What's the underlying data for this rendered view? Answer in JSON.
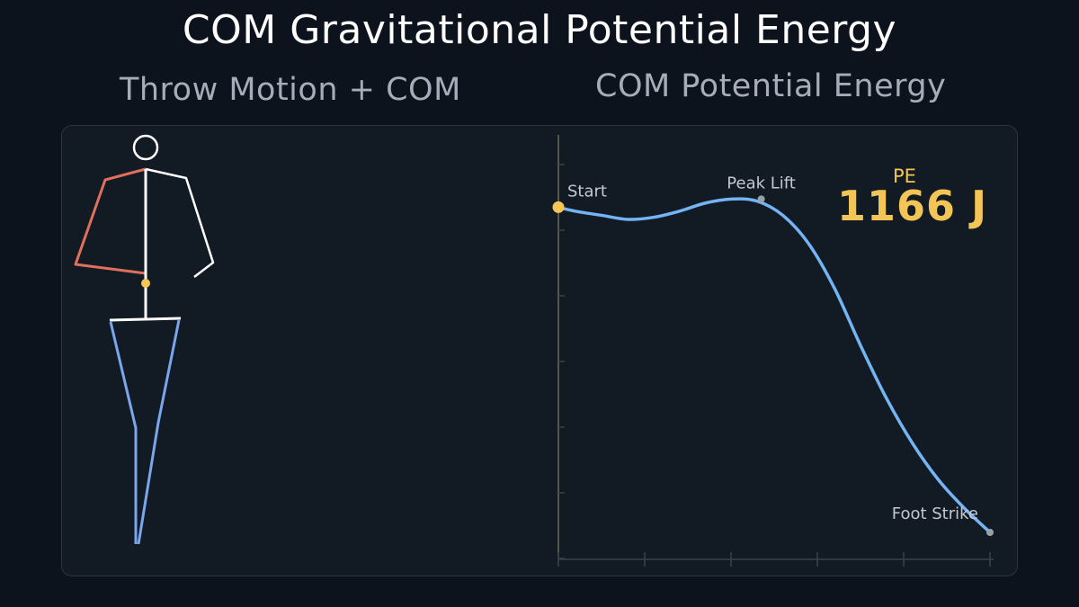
{
  "title": "COM Gravitational Potential Energy",
  "left_panel": {
    "subtitle": "Throw Motion + COM"
  },
  "readout": {
    "label": "PE",
    "value": "1166 J"
  },
  "colors": {
    "background": "#0d131c",
    "panel": "#121a24",
    "curve": "#74b4f4",
    "com": "#f5c556",
    "right_arm": "#e0705c",
    "legs": "#7aa6ee",
    "torso": "#ffffff",
    "axis": "#6f6a52"
  },
  "chart_data": {
    "type": "line",
    "title": "COM Potential Energy",
    "xlabel": "",
    "ylabel": "",
    "grid": false,
    "x_ticks": 6,
    "y_ticks": 7,
    "series": [
      {
        "values": [
          [
            0.0,
            0.8
          ],
          [
            0.04,
            0.79
          ],
          [
            0.1,
            0.78
          ],
          [
            0.16,
            0.77
          ],
          [
            0.22,
            0.775
          ],
          [
            0.28,
            0.79
          ],
          [
            0.34,
            0.81
          ],
          [
            0.4,
            0.82
          ],
          [
            0.46,
            0.815
          ],
          [
            0.52,
            0.78
          ],
          [
            0.58,
            0.71
          ],
          [
            0.64,
            0.6
          ],
          [
            0.7,
            0.46
          ],
          [
            0.76,
            0.33
          ],
          [
            0.82,
            0.22
          ],
          [
            0.88,
            0.13
          ],
          [
            0.94,
            0.06
          ],
          [
            1.0,
            0.0
          ]
        ]
      }
    ],
    "annotations": [
      {
        "text": "Start",
        "x": 0.0,
        "y": 0.8
      },
      {
        "text": "Peak Lift",
        "x": 0.47,
        "y": 0.82
      },
      {
        "text": "Foot Strike",
        "x": 1.0,
        "y": 0.0
      }
    ]
  }
}
